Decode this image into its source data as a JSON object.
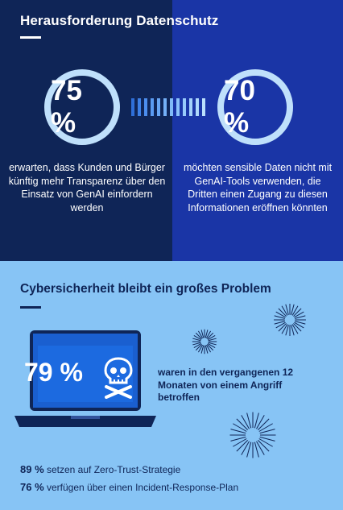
{
  "section1": {
    "title": "Herausforderung Datenschutz",
    "stat_left": {
      "value": "75 %",
      "text": "erwarten, dass Kunden und Bürger künftig mehr Transparenz über den Einsatz von GenAI einfordern werden"
    },
    "stat_right": {
      "value": "70 %",
      "text": "möchten sensible Daten nicht mit GenAI-Tools verwenden, die Dritten einen Zugang zu diesen Informationen eröffnen könnten"
    }
  },
  "section2": {
    "title": "Cybersicherheit bleibt ein großes Problem",
    "stat_main": {
      "value": "79 %",
      "text": "waren in den vergangenen 12 Monaten von einem Angriff betroffen"
    },
    "facts": [
      {
        "value": "89 %",
        "text": "setzen auf Zero-Trust-Strategie"
      },
      {
        "value": "76 %",
        "text": "verfügen über einen Incident-Response-Plan"
      }
    ]
  },
  "icons": [
    "skull-crossbones-icon",
    "laptop-icon",
    "firework-icon"
  ],
  "colors": {
    "navy": "#0f2557",
    "royal_blue": "#1a35a6",
    "light_blue": "#87c4f5",
    "ring": "#bfe0fb"
  }
}
